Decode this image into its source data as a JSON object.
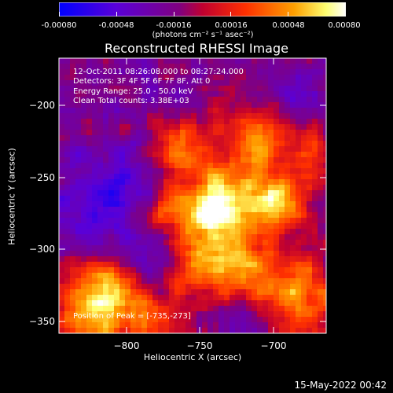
{
  "title": "Reconstructed RHESSI Image",
  "colorbar": {
    "min": -0.0008,
    "max": 0.0008,
    "ticks": [
      "-0.00080",
      "-0.00048",
      "-0.00016",
      "0.00016",
      "0.00048",
      "0.00080"
    ],
    "unit": "(photons cm⁻² s⁻¹ asec⁻²)",
    "colors": [
      "#0000ff",
      "#6a00c0",
      "#8c2a8a",
      "#c0103a",
      "#ff3000",
      "#ffa000",
      "#ffff80",
      "#ffffff"
    ]
  },
  "info": {
    "line1": "12-Oct-2011 08:26:08.000 to 08:27:24.000",
    "line2": "Detectors: 3F 4F 5F 6F 7F 8F, Att 0",
    "line3": "Energy Range: 25.0 - 50.0 keV",
    "line4": "Clean    Total counts: 3.38E+03"
  },
  "peak_text": "Position of Peak = [-735,-273]",
  "axes": {
    "xlabel": "Heliocentric X (arcsec)",
    "ylabel": "Heliocentric Y (arcsec)",
    "xticks": [
      "−800",
      "−750",
      "−700"
    ],
    "yticks": [
      "−200",
      "−250",
      "−300",
      "−350"
    ]
  },
  "timestamp": "15-May-2022 00:42"
}
